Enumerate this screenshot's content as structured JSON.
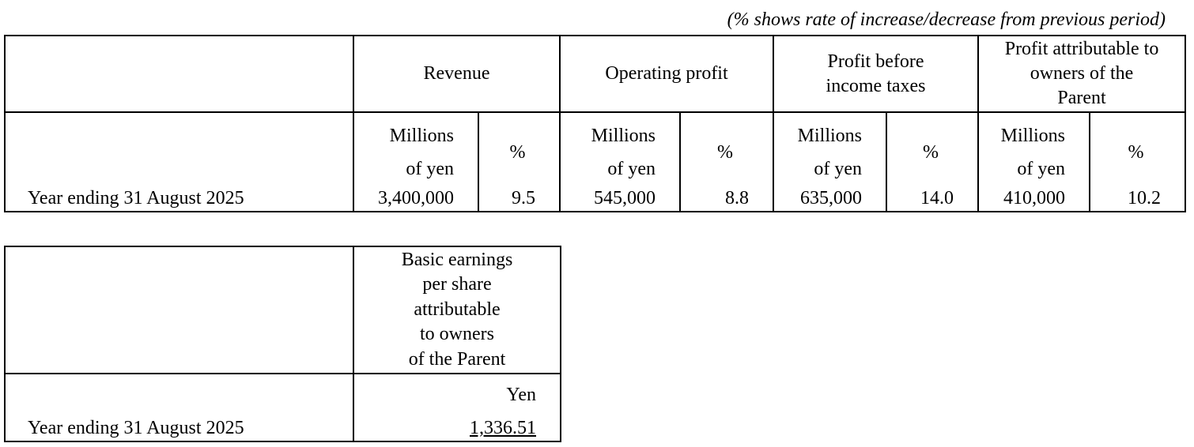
{
  "note": "(% shows rate of increase/decrease from previous period)",
  "forecast_table": {
    "headers": [
      "Revenue",
      "Operating profit",
      "Profit before income taxes",
      "Profit attributable to owners of the Parent"
    ],
    "header_lines": {
      "profit_before_1": "Profit before",
      "profit_before_2": "income taxes",
      "attrib_1": "Profit attributable to",
      "attrib_2": "owners of the",
      "attrib_3": "Parent"
    },
    "unit_amount_1": "Millions",
    "unit_amount_2": "of yen",
    "unit_pct": "%",
    "row": {
      "label": "Year ending 31 August 2025",
      "revenue": "3,400,000",
      "revenue_pct": "9.5",
      "operating_profit": "545,000",
      "operating_profit_pct": "8.8",
      "profit_before_taxes": "635,000",
      "profit_before_taxes_pct": "14.0",
      "profit_attributable": "410,000",
      "profit_attributable_pct": "10.2"
    }
  },
  "eps_table": {
    "header_lines": [
      "Basic earnings",
      "per share",
      "attributable",
      "to owners",
      "of the Parent"
    ],
    "unit": "Yen",
    "row": {
      "label": "Year ending 31 August 2025",
      "value": "1,336.51"
    }
  }
}
